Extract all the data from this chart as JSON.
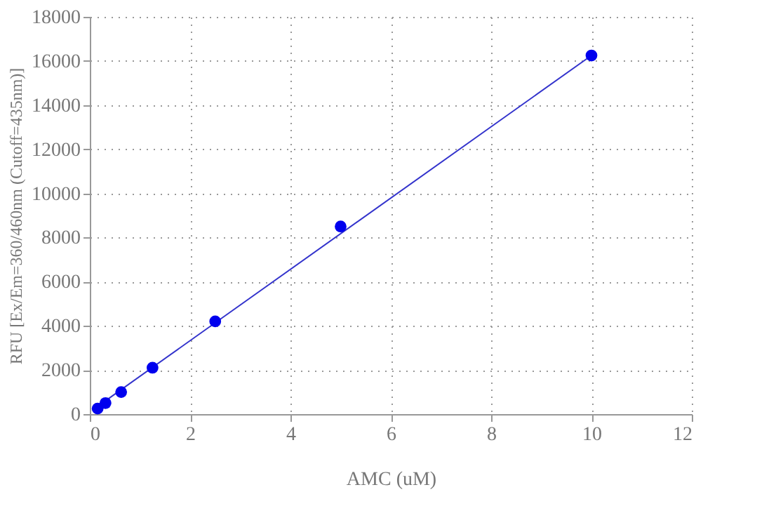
{
  "chart_data": {
    "type": "scatter",
    "xlabel": "AMC (uM)",
    "ylabel": "RFU [Ex/Em=360/460nm (Cutoff=435nm)]",
    "xlim": [
      0,
      12
    ],
    "xticks": [
      0,
      2,
      4,
      6,
      8,
      10,
      12
    ],
    "ylim": [
      0,
      18000
    ],
    "yticks": [
      0,
      2000,
      4000,
      6000,
      8000,
      10000,
      12000,
      14000,
      16000,
      18000
    ],
    "grid": true,
    "marker": "circle",
    "series": [
      {
        "type": "line",
        "color": "#3333cc",
        "marker": "none",
        "line_style": "solid",
        "x": [
          0.05,
          10
        ],
        "values": [
          180,
          16250
        ]
      },
      {
        "color": "#0000ee",
        "x": [
          0.156,
          0.3125,
          0.625,
          1.25,
          2.5,
          5,
          10
        ],
        "values": [
          250,
          500,
          1000,
          2100,
          4200,
          8500,
          16250
        ]
      }
    ]
  }
}
